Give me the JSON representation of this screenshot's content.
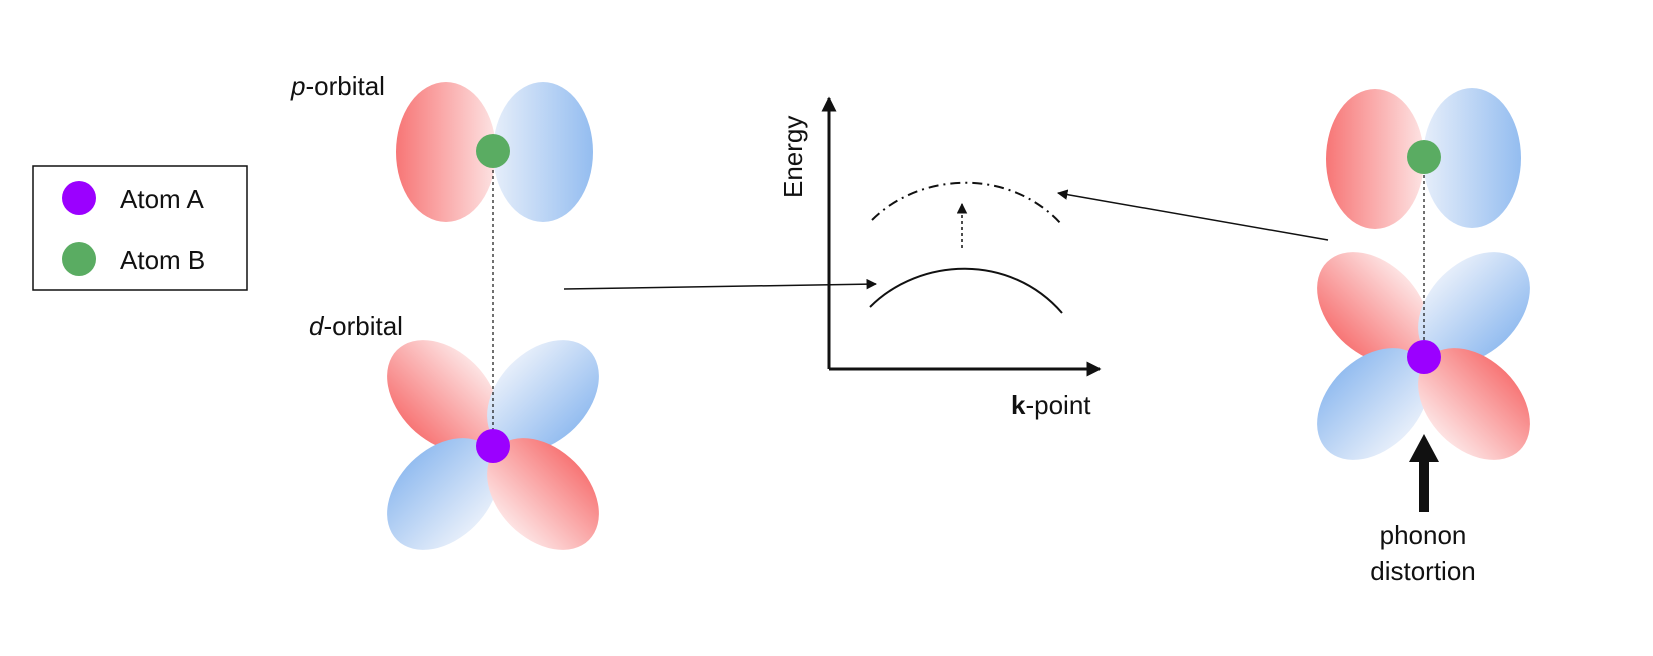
{
  "legend": {
    "items": [
      {
        "label": "Atom A",
        "color": "#9b00ff"
      },
      {
        "label": "Atom B",
        "color": "#5aac62"
      }
    ]
  },
  "left_structure": {
    "p_label_italic": "p",
    "p_label_rest": "-orbital",
    "d_label_italic": "d",
    "d_label_rest": "-orbital"
  },
  "band_plot": {
    "y_axis_label": "Energy",
    "x_axis_bold": "k",
    "x_axis_rest": "-point"
  },
  "right_structure": {
    "caption_line1": "phonon",
    "caption_line2": "distortion"
  },
  "colors": {
    "lobe_red": "#f77a7a",
    "lobe_blue": "#9cc4f2",
    "lobe_center": "#fbe4e4",
    "atom_a": "#9b00ff",
    "atom_b": "#5aac62"
  }
}
